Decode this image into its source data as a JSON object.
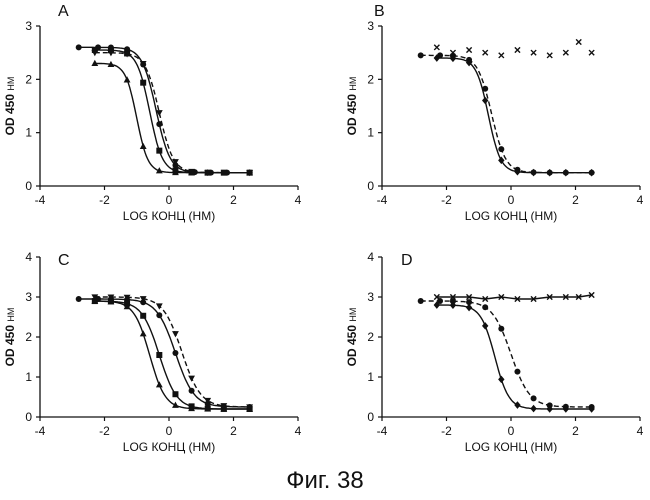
{
  "figure": {
    "caption": "Фиг. 38"
  },
  "chart_data": [
    {
      "panel": "A",
      "type": "line",
      "xlabel": "LOG КОНЦ (НМ)",
      "ylabel_main": "OD 450",
      "ylabel_unit": "НМ",
      "xlim": [
        -4,
        4
      ],
      "ylim": [
        0,
        3
      ],
      "xticks": [
        -4,
        -2,
        0,
        2,
        4
      ],
      "yticks": [
        0,
        1,
        2,
        3
      ],
      "grid": false,
      "series": [
        {
          "name": "circle",
          "marker": "circle",
          "dashed": false,
          "top": 2.6,
          "bottom": 0.25,
          "ec50": -0.4,
          "hill": 2.0,
          "x": [
            -2.8,
            -2.2,
            -1.8,
            -1.3,
            -0.8,
            -0.3,
            0.2,
            0.8,
            1.3,
            1.8,
            2.5
          ]
        },
        {
          "name": "square",
          "marker": "square",
          "dashed": false,
          "top": 2.55,
          "bottom": 0.25,
          "ec50": -0.6,
          "hill": 2.2,
          "x": [
            -2.3,
            -1.8,
            -1.3,
            -0.8,
            -0.3,
            0.2,
            0.7,
            1.2,
            1.7,
            2.5
          ]
        },
        {
          "name": "triangle-up",
          "marker": "triangle-up",
          "dashed": false,
          "top": 2.3,
          "bottom": 0.25,
          "ec50": -1.0,
          "hill": 2.5,
          "x": [
            -2.3,
            -1.8,
            -1.3,
            -0.8,
            -0.3,
            0.2,
            0.7,
            1.2,
            2.5
          ]
        },
        {
          "name": "triangle-down",
          "marker": "triangle-down",
          "dashed": true,
          "top": 2.5,
          "bottom": 0.25,
          "ec50": -0.3,
          "hill": 2.0,
          "x": [
            -2.3,
            -1.8,
            -1.3,
            -0.8,
            -0.3,
            0.2,
            0.7,
            1.2,
            2.5
          ]
        }
      ]
    },
    {
      "panel": "B",
      "type": "line",
      "xlabel": "LOG КОНЦ (НМ)",
      "ylabel_main": "OD 450",
      "ylabel_unit": "НМ",
      "xlim": [
        -4,
        4
      ],
      "ylim": [
        0,
        3
      ],
      "xticks": [
        -4,
        -2,
        0,
        2,
        4
      ],
      "yticks": [
        0,
        1,
        2,
        3
      ],
      "grid": false,
      "series": [
        {
          "name": "circle",
          "marker": "circle",
          "dashed": true,
          "top": 2.45,
          "bottom": 0.25,
          "ec50": -0.6,
          "hill": 2.0,
          "x": [
            -2.8,
            -2.2,
            -1.8,
            -1.3,
            -0.8,
            -0.3,
            0.2,
            0.7,
            1.2,
            1.7,
            2.5
          ]
        },
        {
          "name": "diamond",
          "marker": "diamond",
          "dashed": false,
          "top": 2.4,
          "bottom": 0.25,
          "ec50": -0.7,
          "hill": 2.3,
          "x": [
            -2.3,
            -1.8,
            -1.3,
            -0.8,
            -0.3,
            0.2,
            0.7,
            1.2,
            1.7,
            2.5
          ]
        },
        {
          "name": "cross",
          "marker": "cross",
          "line": false,
          "x": [
            -2.3,
            -1.8,
            -1.3,
            -0.8,
            -0.3,
            0.2,
            0.7,
            1.2,
            1.7,
            2.1,
            2.5
          ],
          "y": [
            2.6,
            2.5,
            2.55,
            2.5,
            2.45,
            2.55,
            2.5,
            2.45,
            2.5,
            2.7,
            2.5
          ]
        }
      ]
    },
    {
      "panel": "C",
      "type": "line",
      "xlabel": "LOG КОНЦ (НМ)",
      "ylabel_main": "OD 450",
      "ylabel_unit": "НМ",
      "xlim": [
        -4,
        4
      ],
      "ylim": [
        0,
        4
      ],
      "xticks": [
        -4,
        -2,
        0,
        2,
        4
      ],
      "yticks": [
        0,
        1,
        2,
        3,
        4
      ],
      "grid": false,
      "series": [
        {
          "name": "circle",
          "marker": "circle",
          "dashed": false,
          "top": 2.95,
          "bottom": 0.25,
          "ec50": 0.2,
          "hill": 1.5,
          "x": [
            -2.8,
            -2.2,
            -1.8,
            -1.3,
            -0.8,
            -0.3,
            0.2,
            0.7,
            1.2,
            1.7,
            2.5
          ]
        },
        {
          "name": "square",
          "marker": "square",
          "dashed": false,
          "top": 2.9,
          "bottom": 0.2,
          "ec50": -0.3,
          "hill": 1.6,
          "x": [
            -2.3,
            -1.8,
            -1.3,
            -0.8,
            -0.3,
            0.2,
            0.7,
            1.2,
            1.7,
            2.5
          ]
        },
        {
          "name": "triangle-up",
          "marker": "triangle-up",
          "dashed": false,
          "top": 2.9,
          "bottom": 0.2,
          "ec50": -0.6,
          "hill": 1.8,
          "x": [
            -2.3,
            -1.8,
            -1.3,
            -0.8,
            -0.3,
            0.2,
            0.7,
            1.2,
            1.7,
            2.5
          ]
        },
        {
          "name": "triangle-down",
          "marker": "triangle-down",
          "dashed": true,
          "top": 3.0,
          "bottom": 0.25,
          "ec50": 0.4,
          "hill": 1.5,
          "x": [
            -2.3,
            -1.8,
            -1.3,
            -0.8,
            -0.3,
            0.2,
            0.7,
            1.2,
            1.7,
            2.5
          ]
        }
      ]
    },
    {
      "panel": "D",
      "type": "line",
      "xlabel": "LOG КОНЦ (НМ)",
      "ylabel_main": "OD 450",
      "ylabel_unit": "НМ",
      "xlim": [
        -4,
        4
      ],
      "ylim": [
        0,
        4
      ],
      "xticks": [
        -4,
        -2,
        0,
        2,
        4
      ],
      "yticks": [
        0,
        1,
        2,
        3,
        4
      ],
      "grid": false,
      "series": [
        {
          "name": "circle",
          "marker": "circle",
          "dashed": true,
          "top": 2.9,
          "bottom": 0.25,
          "ec50": 0.0,
          "hill": 1.5,
          "x": [
            -2.8,
            -2.2,
            -1.8,
            -1.3,
            -0.8,
            -0.3,
            0.2,
            0.7,
            1.2,
            1.7,
            2.5
          ]
        },
        {
          "name": "diamond",
          "marker": "diamond",
          "dashed": false,
          "top": 2.8,
          "bottom": 0.2,
          "ec50": -0.5,
          "hill": 2.0,
          "x": [
            -2.3,
            -1.8,
            -1.3,
            -0.8,
            -0.3,
            0.2,
            0.7,
            1.2,
            1.7,
            2.5
          ]
        },
        {
          "name": "cross",
          "marker": "cross",
          "line": true,
          "linear": true,
          "x": [
            -2.3,
            -1.8,
            -1.3,
            -0.8,
            -0.3,
            0.2,
            0.7,
            1.2,
            1.7,
            2.1,
            2.5
          ],
          "y": [
            3.0,
            3.0,
            3.0,
            2.95,
            3.0,
            2.95,
            2.95,
            3.0,
            3.0,
            3.0,
            3.05
          ]
        }
      ]
    }
  ]
}
